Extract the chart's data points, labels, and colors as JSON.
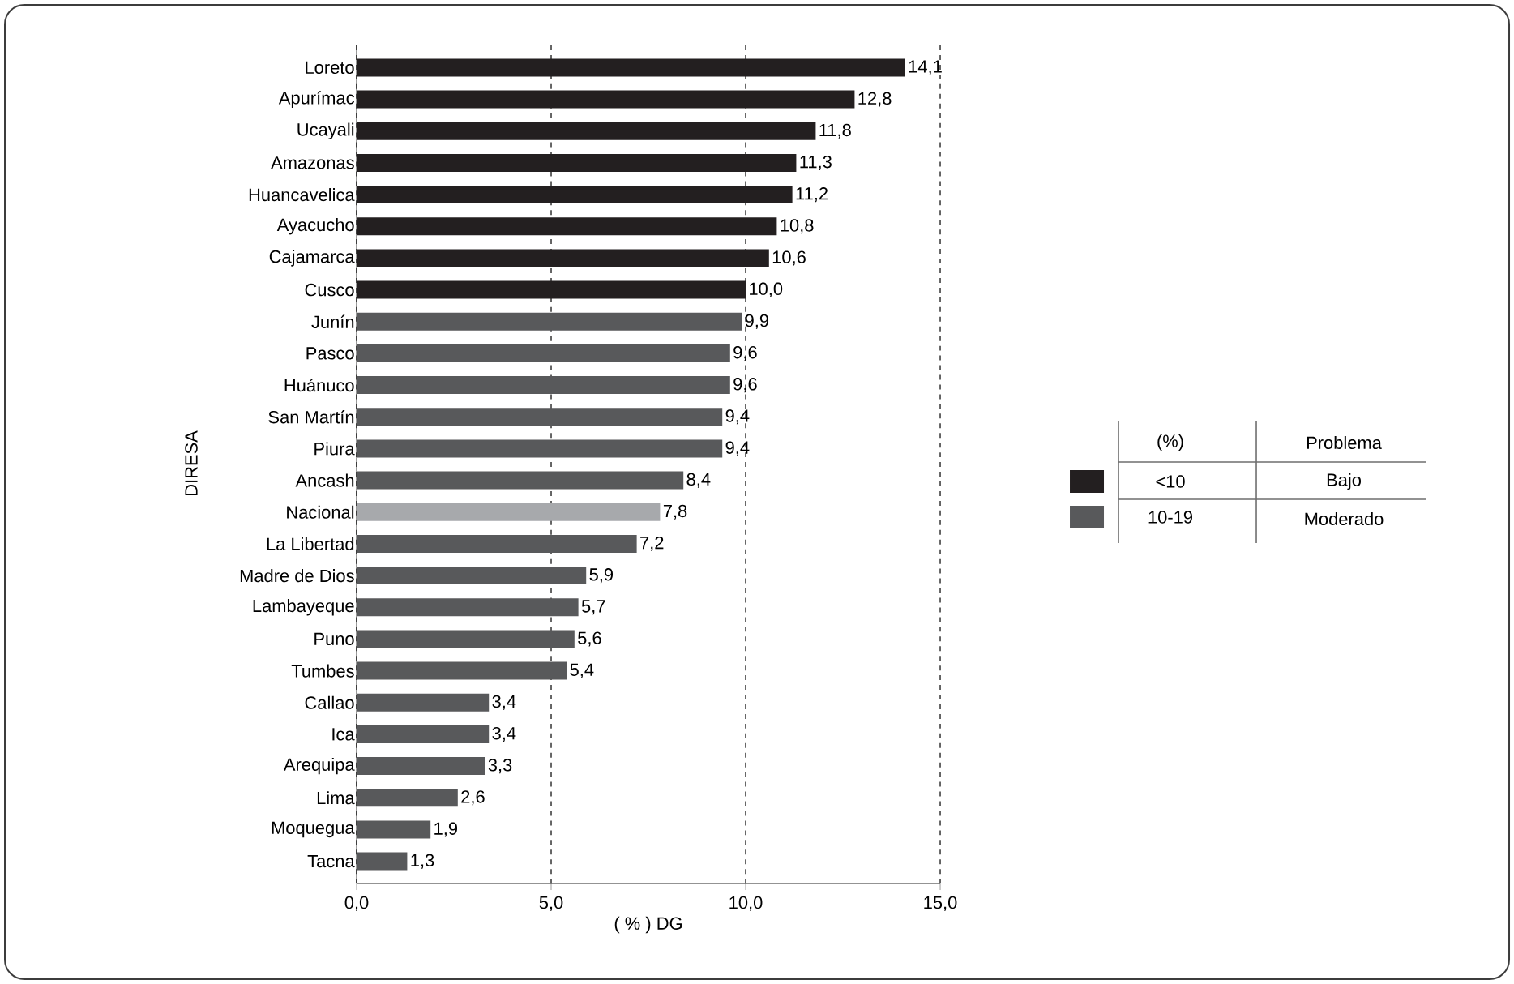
{
  "chart_data": {
    "type": "bar",
    "orientation": "horizontal",
    "xlabel": "( % ) DG",
    "ylabel": "DIRESA",
    "legend_title": "(%)",
    "categories": [
      "Loreto",
      "Apurímac",
      "Ucayali",
      "Amazonas",
      "Huancavelica",
      "Ayacucho",
      "Cajamarca",
      "Cusco",
      "Junín",
      "Pasco",
      "Huánuco",
      "San Martín",
      "Piura",
      "Ancash",
      "Nacional",
      "La Libertad",
      "Madre de Dios",
      "Lambayeque",
      "Puno",
      "Tumbes",
      "Callao",
      "Ica",
      "Arequipa",
      "Lima",
      "Moquegua",
      "Tacna"
    ],
    "series": [
      {
        "name": "<10",
        "color": "#231f20",
        "values": [
          14.1,
          12.8,
          11.8,
          11.3,
          11.2,
          10.8,
          10.6,
          10.0,
          null,
          null,
          null,
          null,
          null,
          null,
          null,
          null,
          null,
          null,
          null,
          null,
          null,
          null,
          null,
          null,
          null,
          null
        ]
      },
      {
        "name": "10-19",
        "color": "#58595b",
        "values": [
          null,
          null,
          null,
          null,
          null,
          null,
          null,
          null,
          9.9,
          9.6,
          9.6,
          9.4,
          9.4,
          8.4,
          null,
          7.2,
          5.9,
          5.7,
          5.6,
          5.4,
          3.4,
          3.4,
          3.3,
          2.6,
          1.9,
          1.3
        ]
      },
      {
        "color": "#a7a9ac",
        "values": [
          null,
          null,
          null,
          null,
          null,
          null,
          null,
          null,
          null,
          null,
          null,
          null,
          null,
          null,
          7.8,
          null,
          null,
          null,
          null,
          null,
          null,
          null,
          null,
          null,
          null,
          null
        ]
      }
    ],
    "value_labels": [
      "14,1",
      "12,8",
      "11,8",
      "11,3",
      "11,2",
      "10,8",
      "10,6",
      "10,0",
      "9,9",
      "9,6",
      "9,6",
      "9,4",
      "9,4",
      "8,4",
      "7,8",
      "7,2",
      "5,9",
      "5,7",
      "5,6",
      "5,4",
      "3,4",
      "3,4",
      "3,3",
      "2,6",
      "1,9",
      "1,3"
    ],
    "xlim": [
      0,
      15
    ],
    "xticks": [
      {
        "value": 0,
        "label": "0,0"
      },
      {
        "value": 5,
        "label": "5,0"
      },
      {
        "value": 10,
        "label": "10,0"
      },
      {
        "value": 15,
        "label": "15,0"
      }
    ],
    "grid": "x",
    "legend": "right",
    "annotations": [
      "Problema",
      "Bajo",
      "Moderado"
    ]
  }
}
